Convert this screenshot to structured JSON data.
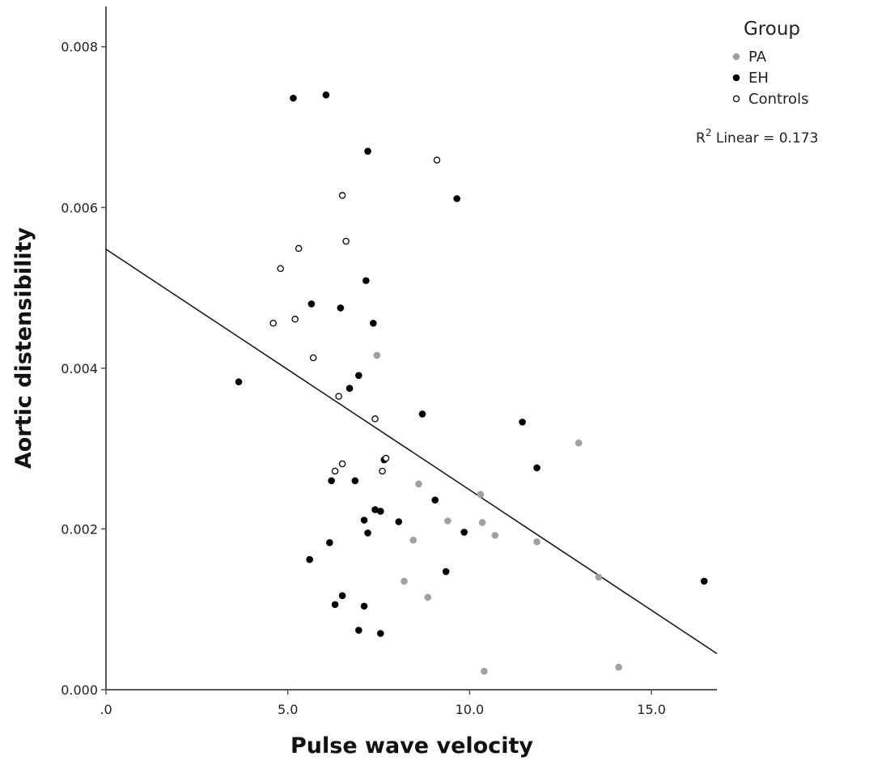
{
  "chart_data": {
    "type": "scatter",
    "title": "",
    "xlabel": "Pulse wave velocity",
    "ylabel": "Aortic distensibility",
    "xlim": [
      0,
      16.8
    ],
    "ylim": [
      0,
      0.0084
    ],
    "x_ticks": [
      {
        "value": 0,
        "label": ".0"
      },
      {
        "value": 5,
        "label": "5.0"
      },
      {
        "value": 10,
        "label": "10.0"
      },
      {
        "value": 15,
        "label": "15.0"
      }
    ],
    "y_ticks": [
      {
        "value": 0,
        "label": "0.000"
      },
      {
        "value": 0.002,
        "label": "0.002"
      },
      {
        "value": 0.004,
        "label": "0.004"
      },
      {
        "value": 0.006,
        "label": "0.006"
      },
      {
        "value": 0.008,
        "label": "0.008"
      }
    ],
    "legend": {
      "title": "Group",
      "position": "top-right",
      "entries": [
        {
          "label": "PA",
          "marker": "filled",
          "color": "#a0a0a0"
        },
        {
          "label": "EH",
          "marker": "filled",
          "color": "#000000"
        },
        {
          "label": "Controls",
          "marker": "hollow",
          "color": "#000000"
        }
      ]
    },
    "annotation": {
      "base": "R",
      "sup": "2",
      "text": " Linear = 0.173"
    },
    "fit_line": {
      "type": "linear",
      "start": [
        0,
        0.00548
      ],
      "end": [
        16.8,
        0.00045
      ]
    },
    "series": [
      {
        "name": "PA",
        "marker": "filled",
        "color": "#a0a0a0",
        "points": [
          [
            7.45,
            0.00416
          ],
          [
            13.0,
            0.00307
          ],
          [
            8.6,
            0.00256
          ],
          [
            10.3,
            0.00243
          ],
          [
            9.4,
            0.0021
          ],
          [
            10.35,
            0.00208
          ],
          [
            10.7,
            0.00192
          ],
          [
            8.45,
            0.00186
          ],
          [
            11.85,
            0.00184
          ],
          [
            13.55,
            0.0014
          ],
          [
            8.2,
            0.00135
          ],
          [
            8.85,
            0.00115
          ],
          [
            14.1,
            0.00028
          ],
          [
            10.4,
            0.00023
          ]
        ]
      },
      {
        "name": "EH",
        "marker": "filled",
        "color": "#000000",
        "points": [
          [
            5.15,
            0.00736
          ],
          [
            6.05,
            0.0074
          ],
          [
            7.2,
            0.0067
          ],
          [
            9.65,
            0.00611
          ],
          [
            7.15,
            0.00509
          ],
          [
            5.65,
            0.0048
          ],
          [
            6.45,
            0.00475
          ],
          [
            7.35,
            0.00456
          ],
          [
            3.65,
            0.00383
          ],
          [
            6.95,
            0.00391
          ],
          [
            6.7,
            0.00375
          ],
          [
            8.7,
            0.00343
          ],
          [
            11.45,
            0.00333
          ],
          [
            7.65,
            0.00286
          ],
          [
            11.85,
            0.00276
          ],
          [
            6.2,
            0.0026
          ],
          [
            6.85,
            0.0026
          ],
          [
            9.05,
            0.00236
          ],
          [
            7.4,
            0.00224
          ],
          [
            7.55,
            0.00222
          ],
          [
            7.1,
            0.00211
          ],
          [
            8.05,
            0.00209
          ],
          [
            7.2,
            0.00195
          ],
          [
            9.85,
            0.00196
          ],
          [
            6.15,
            0.00183
          ],
          [
            5.6,
            0.00162
          ],
          [
            9.35,
            0.00147
          ],
          [
            16.45,
            0.00135
          ],
          [
            6.5,
            0.00117
          ],
          [
            6.3,
            0.00106
          ],
          [
            7.1,
            0.00104
          ],
          [
            6.95,
            0.00074
          ],
          [
            7.55,
            0.0007
          ]
        ]
      },
      {
        "name": "Controls",
        "marker": "hollow",
        "color": "#000000",
        "points": [
          [
            9.1,
            0.00659
          ],
          [
            6.5,
            0.00615
          ],
          [
            6.6,
            0.00558
          ],
          [
            5.3,
            0.00549
          ],
          [
            4.8,
            0.00524
          ],
          [
            5.2,
            0.00461
          ],
          [
            4.6,
            0.00456
          ],
          [
            5.7,
            0.00413
          ],
          [
            6.4,
            0.00365
          ],
          [
            7.4,
            0.00337
          ],
          [
            7.7,
            0.00288
          ],
          [
            6.5,
            0.00281
          ],
          [
            6.3,
            0.00272
          ],
          [
            7.6,
            0.00272
          ]
        ]
      }
    ]
  }
}
